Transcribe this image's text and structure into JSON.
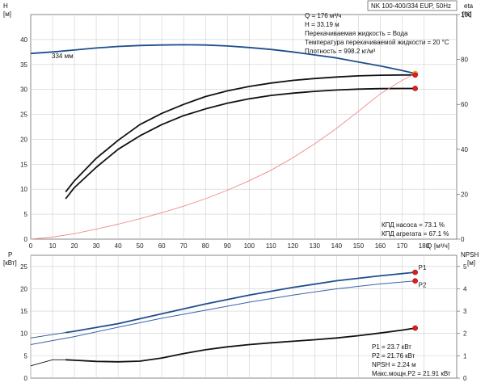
{
  "chart_data": {
    "type": "line",
    "model_title": "NK 100-400/334 EUP, 50Hz",
    "upper": {
      "y_left": {
        "title": "H",
        "unit": "[м]",
        "range": [
          0,
          45
        ],
        "ticks": [
          0,
          5,
          10,
          15,
          20,
          25,
          30,
          35,
          40
        ]
      },
      "y_right": {
        "title": "eta",
        "unit": "[%]",
        "range": [
          0,
          100
        ],
        "ticks": [
          0,
          20,
          40,
          60,
          80,
          100
        ]
      },
      "x": {
        "label": "Q",
        "unit": "[м³/ч]",
        "range": [
          0,
          195
        ],
        "ticks": [
          0,
          10,
          20,
          30,
          40,
          50,
          60,
          70,
          80,
          90,
          100,
          110,
          120,
          130,
          140,
          150,
          160,
          170,
          180
        ]
      },
      "curve_label": "334 мм",
      "info": [
        "Q = 176 м³/ч",
        "H = 33.19 м",
        "Перекачиваемая жидкость = Вода",
        "Температура перекачиваемой жидкости = 20 °C",
        "Плотность = 998.2 кг/м³"
      ],
      "efficiency_info": [
        "КПД насоса = 73.1 %",
        "КПД агрегата = 67.1 %"
      ],
      "series": [
        {
          "name": "334 мм",
          "axis": "left",
          "color": "#1f4e8c",
          "x": [
            0,
            10,
            20,
            30,
            40,
            50,
            60,
            70,
            80,
            90,
            100,
            110,
            120,
            130,
            140,
            150,
            160,
            170,
            176
          ],
          "y": [
            37.2,
            37.5,
            37.9,
            38.3,
            38.6,
            38.8,
            38.9,
            38.95,
            38.9,
            38.7,
            38.4,
            38.0,
            37.5,
            36.9,
            36.3,
            35.5,
            34.7,
            33.8,
            33.19
          ]
        },
        {
          "name": "КПД насоса",
          "axis": "right",
          "color": "#111111",
          "x": [
            16,
            20,
            30,
            40,
            50,
            60,
            70,
            80,
            90,
            100,
            110,
            120,
            130,
            140,
            150,
            160,
            170,
            176
          ],
          "y": [
            21,
            26,
            36,
            44,
            51,
            56,
            60,
            63.5,
            66,
            68,
            69.5,
            70.7,
            71.5,
            72.2,
            72.7,
            73.0,
            73.1,
            73.1
          ]
        },
        {
          "name": "КПД агрегата",
          "axis": "right",
          "color": "#111111",
          "x": [
            16,
            20,
            30,
            40,
            50,
            60,
            70,
            80,
            90,
            100,
            110,
            120,
            130,
            140,
            150,
            160,
            170,
            176
          ],
          "y": [
            18,
            23,
            32,
            40,
            46,
            51,
            55,
            58,
            60.5,
            62.5,
            64,
            65,
            65.8,
            66.4,
            66.8,
            67.0,
            67.1,
            67.1
          ]
        },
        {
          "name": "",
          "axis": "left",
          "color": "#f08a8a",
          "x": [
            0,
            10,
            20,
            30,
            40,
            50,
            60,
            70,
            80,
            90,
            100,
            110,
            120,
            130,
            140,
            150,
            160,
            170,
            176
          ],
          "y": [
            0,
            0.4,
            1.1,
            2.0,
            3.0,
            4.1,
            5.3,
            6.6,
            8.1,
            9.8,
            11.7,
            13.8,
            16.3,
            19.1,
            22.2,
            25.6,
            29.1,
            31.8,
            33.19
          ]
        }
      ],
      "points": [
        {
          "x": 176,
          "y": 33.19,
          "axis": "left",
          "color": "#ffd11a",
          "stroke": "#c28a00"
        },
        {
          "x": 176,
          "y": 73.1,
          "axis": "right",
          "color": "#e02020",
          "stroke": "#a00000"
        },
        {
          "x": 176,
          "y": 67.1,
          "axis": "right",
          "color": "#e02020",
          "stroke": "#a00000"
        }
      ]
    },
    "lower": {
      "y_left": {
        "title": "P",
        "unit": "[кВт]",
        "range": [
          0,
          27.5
        ],
        "ticks": [
          0,
          5,
          10,
          15,
          20,
          25
        ]
      },
      "y_right": {
        "title": "NPSH",
        "unit": "[м]",
        "range": [
          0,
          5.5
        ],
        "ticks": [
          0,
          1,
          2,
          3,
          4,
          5
        ]
      },
      "x": {
        "range": [
          0,
          195
        ]
      },
      "info": [
        "P1 = 23.7 кВт",
        "P2 = 21.76 кВт",
        "NPSH = 2.24 м",
        "Макс.мощн.P2 = 21.91 кВт"
      ],
      "series": [
        {
          "name": "P1",
          "axis": "left",
          "color": "#1f4e8c",
          "width": 1.8,
          "dashed_until": 16,
          "x": [
            0,
            16,
            20,
            40,
            60,
            80,
            100,
            120,
            140,
            160,
            176
          ],
          "y": [
            9.0,
            10.2,
            10.5,
            12.2,
            14.4,
            16.6,
            18.6,
            20.3,
            21.8,
            22.9,
            23.7
          ]
        },
        {
          "name": "P2",
          "axis": "left",
          "color": "#3a63a8",
          "width": 1.0,
          "x": [
            0,
            20,
            40,
            60,
            80,
            100,
            120,
            140,
            160,
            176
          ],
          "y": [
            7.5,
            9.3,
            11.4,
            13.4,
            15.2,
            17.0,
            18.6,
            20.0,
            21.1,
            21.76
          ]
        },
        {
          "name": "NPSH",
          "axis": "right",
          "color": "#111111",
          "width": 1.8,
          "dashed_until": 16,
          "x": [
            0,
            10,
            16,
            20,
            30,
            40,
            50,
            60,
            70,
            80,
            90,
            100,
            110,
            120,
            130,
            140,
            150,
            160,
            170,
            176
          ],
          "y": [
            0.55,
            0.82,
            0.82,
            0.8,
            0.75,
            0.73,
            0.76,
            0.9,
            1.1,
            1.27,
            1.4,
            1.5,
            1.58,
            1.65,
            1.72,
            1.8,
            1.9,
            2.02,
            2.15,
            2.24
          ]
        }
      ],
      "series_labels": [
        {
          "text": "P1",
          "series": "P1"
        },
        {
          "text": "P2",
          "series": "P2"
        }
      ],
      "points": [
        {
          "x": 176,
          "y": 23.7,
          "axis": "left",
          "color": "#e02020",
          "stroke": "#a00000"
        },
        {
          "x": 176,
          "y": 21.76,
          "axis": "left",
          "color": "#e02020",
          "stroke": "#a00000"
        },
        {
          "x": 176,
          "y": 2.24,
          "axis": "right",
          "color": "#e02020",
          "stroke": "#a00000"
        }
      ]
    }
  }
}
